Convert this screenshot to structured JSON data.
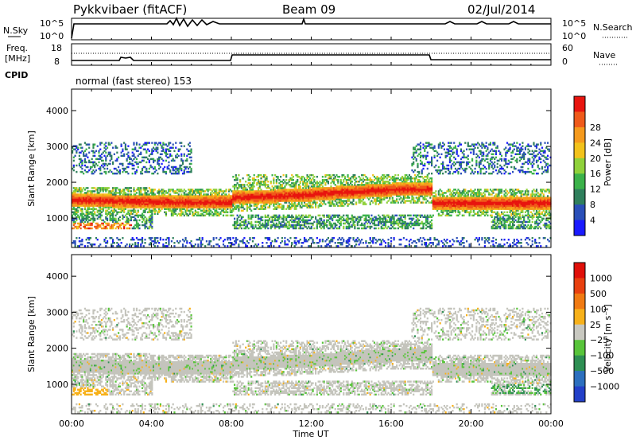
{
  "header": {
    "station": "Pykkvibaer (fitACF)",
    "beam": "Beam 09",
    "date": "02/Jul/2014"
  },
  "strip_panels": {
    "left_labels": {
      "nsky": "N.Sky",
      "freq_line1": "Freq.",
      "freq_line2": "[MHz]",
      "cpid": "CPID"
    },
    "right_labels": {
      "nsearch": "N.Search",
      "nave": "Nave"
    },
    "noise_left_ticks": [
      "10^5",
      "10^0"
    ],
    "noise_right_ticks": [
      "10^5",
      "10^0"
    ],
    "freq_left_ticks": [
      "18",
      "8"
    ],
    "freq_right_ticks": [
      "60",
      "0"
    ],
    "cpid_text": "normal (fast stereo) 153"
  },
  "chart_data": [
    {
      "type": "heatmap",
      "name": "power",
      "xlabel": "",
      "ylabel": "Slant Range [km]",
      "x_ticks": [
        "00:00",
        "04:00",
        "08:00",
        "12:00",
        "16:00",
        "20:00",
        "00:00"
      ],
      "xlim_hours": [
        0,
        24
      ],
      "ylim_km": [
        180,
        4600
      ],
      "y_ticks": [
        "1000",
        "2000",
        "3000",
        "4000"
      ],
      "colorbar_label": "Power [dB]",
      "colorbar_ticks": [
        "4",
        "8",
        "12",
        "16",
        "20",
        "24",
        "28"
      ],
      "colorbar_colors": [
        "#1a1aff",
        "#2a4fb8",
        "#2f7f5c",
        "#3bb24a",
        "#8fd13a",
        "#f2c21b",
        "#f59a1d",
        "#ef5a1a",
        "#e8150f"
      ],
      "main_band": {
        "start_km": 1450,
        "end_km": 1500,
        "description_free": true
      }
    },
    {
      "type": "heatmap",
      "name": "velocity",
      "xlabel": "Time UT",
      "ylabel": "Slant Range [km]",
      "x_ticks": [
        "00:00",
        "04:00",
        "08:00",
        "12:00",
        "16:00",
        "20:00",
        "00:00"
      ],
      "xlim_hours": [
        0,
        24
      ],
      "ylim_km": [
        180,
        4600
      ],
      "y_ticks": [
        "1000",
        "2000",
        "3000",
        "4000"
      ],
      "colorbar_label": "Velocity [m s⁻¹]",
      "colorbar_ticks": [
        "1000",
        "500",
        "100",
        "25",
        "−25",
        "−100",
        "−500",
        "−1000"
      ],
      "colorbar_colors": [
        "#2340c8",
        "#2c6fbe",
        "#2e8f53",
        "#58c43a",
        "#c8c8c0",
        "#f7b11a",
        "#f07a12",
        "#e8400f",
        "#e0100a"
      ]
    }
  ],
  "colors": {
    "ground_grey": "#c4c4bc",
    "frame": "#000000"
  }
}
